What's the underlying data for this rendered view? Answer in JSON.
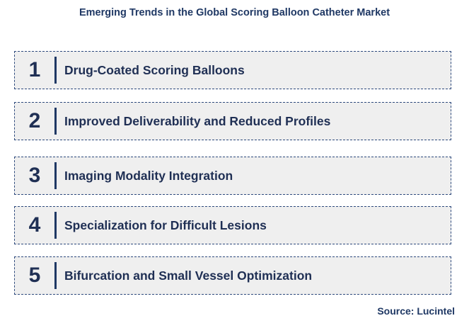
{
  "title": "Emerging Trends in the Global Scoring Balloon Catheter Market",
  "trends": [
    {
      "number": "1",
      "label": "Drug-Coated Scoring Balloons"
    },
    {
      "number": "2",
      "label": "Improved Deliverability and Reduced Profiles"
    },
    {
      "number": "3",
      "label": "Imaging Modality Integration"
    },
    {
      "number": "4",
      "label": "Specialization for Difficult Lesions"
    },
    {
      "number": "5",
      "label": "Bifurcation and Small Vessel Optimization"
    }
  ],
  "source": "Source: Lucintel",
  "colors": {
    "text": "#1f3864",
    "box_fill": "#efefef",
    "box_border": "#2e4a7d"
  }
}
